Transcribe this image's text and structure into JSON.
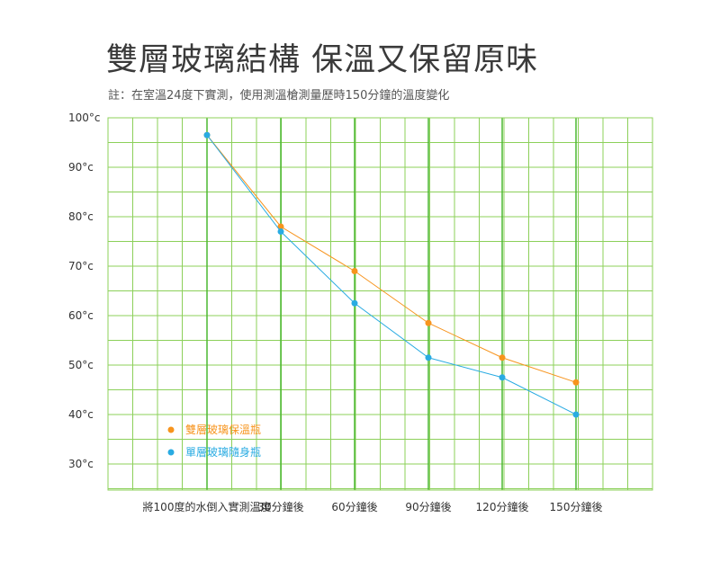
{
  "title": "雙層玻璃結構  保溫又保留原味",
  "subtitle": "註：在室溫24度下實測，使用測溫槍測量歷時150分鐘的溫度變化",
  "colors": {
    "grid_minor": "#8cd05a",
    "grid_major": "#4cb832",
    "series_double": "#f7941d",
    "series_single": "#29abe2",
    "text": "#555555"
  },
  "chart_data": {
    "type": "line",
    "categories": [
      "將100度的水倒入實測溫度",
      "30分鐘後",
      "60分鐘後",
      "90分鐘後",
      "120分鐘後",
      "150分鐘後"
    ],
    "y_ticks": [
      "100°c",
      "90°c",
      "80°c",
      "70°c",
      "60°c",
      "50°c",
      "40°c",
      "30°c"
    ],
    "ylim": [
      25,
      100
    ],
    "grid": true,
    "legend_position": "bottom-left",
    "series": [
      {
        "name": "雙層玻璃保溫瓶",
        "color": "#f7941d",
        "values": [
          96.5,
          78,
          69,
          58.5,
          51.5,
          46.5
        ]
      },
      {
        "name": "單層玻璃隨身瓶",
        "color": "#29abe2",
        "values": [
          96.5,
          77,
          62.5,
          51.5,
          47.5,
          40
        ]
      }
    ]
  }
}
